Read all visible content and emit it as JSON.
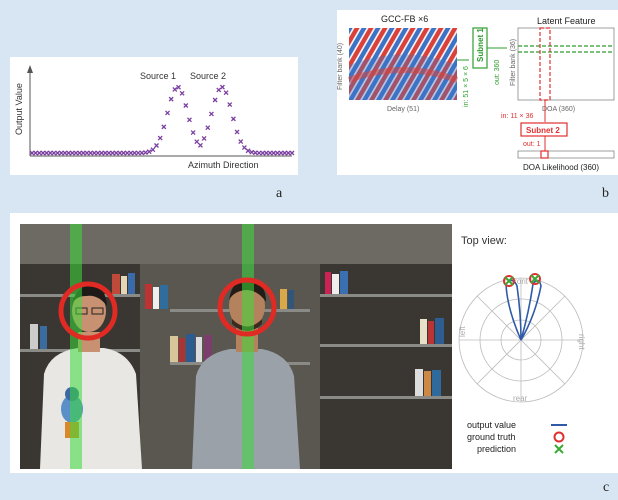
{
  "panel_a": {
    "label": "a",
    "y_axis_label": "Output Value",
    "x_axis_label": "Azimuth Direction",
    "source_labels": [
      "Source 1",
      "Source 2"
    ],
    "colors": {
      "markers": "#7b3fa0",
      "axis": "#555555"
    }
  },
  "panel_b": {
    "label": "b",
    "gcc_title": "GCC-FB ×6",
    "gcc_y_label": "Filter bank (40)",
    "gcc_x_label": "Delay (51)",
    "subnet1": {
      "name": "Subnet 1",
      "input": "in: 51 × 5 × 6",
      "output": "out: 360"
    },
    "latent_title": "Latent Feature",
    "latent_y_label": "Filter bank (36)",
    "latent_x_label": "DOA (360)",
    "subnet2": {
      "name": "Subnet 2",
      "input": "in: 11 × 36",
      "output": "out: 1"
    },
    "likelihood_label": "DOA Likelihood (360)",
    "colors": {
      "subnet1": "#2e9e2e",
      "subnet2": "#e03030"
    }
  },
  "panel_c": {
    "label": "c",
    "top_view_title": "Top view:",
    "polar_labels": {
      "front": "front",
      "rear": "rear",
      "left": "left",
      "right": "right"
    },
    "legend": [
      {
        "label": "output value",
        "symbol": "line",
        "color": "#2f5aa8"
      },
      {
        "label": "ground truth",
        "symbol": "circle",
        "color": "#e03030"
      },
      {
        "label": "prediction",
        "symbol": "cross",
        "color": "#3aaa35"
      }
    ]
  }
}
